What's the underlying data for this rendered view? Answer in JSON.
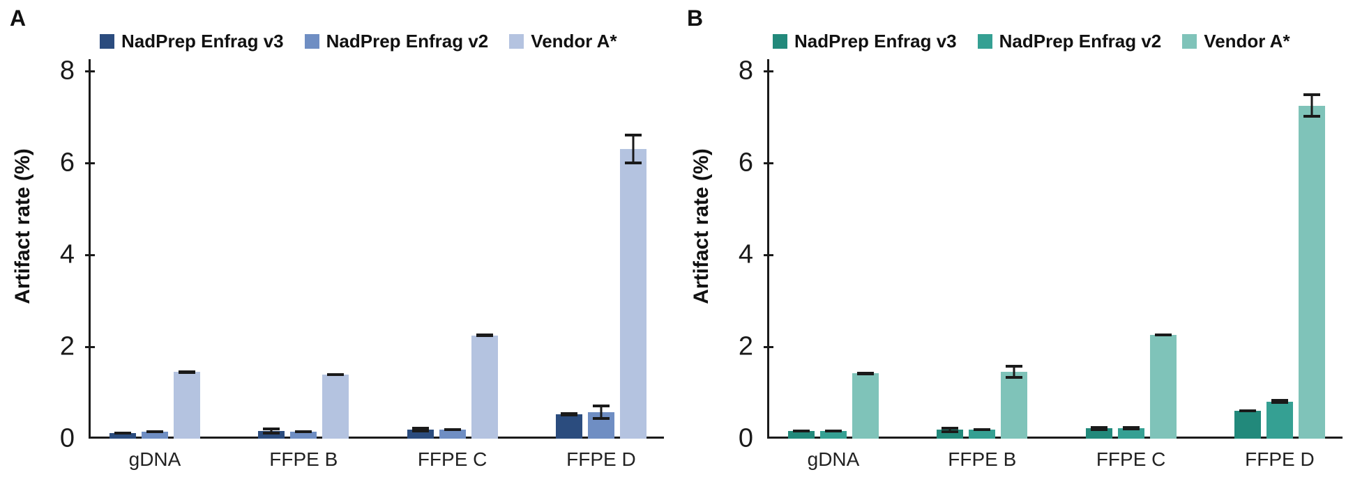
{
  "ui": {
    "background": "#ffffff",
    "axis_color": "#1a1a1a",
    "panel_labels": [
      "A",
      "B"
    ]
  },
  "chart_data": [
    {
      "panel_label": "A",
      "type": "bar",
      "title": "",
      "xlabel": "",
      "ylabel": "Artifact rate (%)",
      "ylim": [
        0,
        8
      ],
      "yticks": [
        0,
        2,
        4,
        6,
        8
      ],
      "grid": false,
      "legend_position": "top",
      "categories": [
        "gDNA",
        "FFPE B",
        "FFPE C",
        "FFPE D"
      ],
      "colors": [
        "#2b4c7e",
        "#6f8ec3",
        "#b4c3e0"
      ],
      "series": [
        {
          "name": "NadPrep Enfrag v3",
          "values": [
            0.12,
            0.17,
            0.2,
            0.53
          ],
          "errors": [
            0.03,
            0.08,
            0.06,
            0.05
          ]
        },
        {
          "name": "NadPrep Enfrag v2",
          "values": [
            0.15,
            0.15,
            0.2,
            0.58
          ],
          "errors": [
            0.03,
            0.03,
            0.03,
            0.17
          ]
        },
        {
          "name": "Vendor A*",
          "values": [
            1.45,
            1.4,
            2.25,
            6.3
          ],
          "errors": [
            0.04,
            0.03,
            0.04,
            0.33
          ]
        }
      ]
    },
    {
      "panel_label": "B",
      "type": "bar",
      "title": "",
      "xlabel": "",
      "ylabel": "Artifact rate (%)",
      "ylim": [
        0,
        8
      ],
      "yticks": [
        0,
        2,
        4,
        6,
        8
      ],
      "grid": false,
      "legend_position": "top",
      "categories": [
        "gDNA",
        "FFPE B",
        "FFPE C",
        "FFPE D"
      ],
      "colors": [
        "#22897b",
        "#35a093",
        "#7fc3b9"
      ],
      "series": [
        {
          "name": "NadPrep Enfrag v3",
          "values": [
            0.16,
            0.19,
            0.22,
            0.61
          ],
          "errors": [
            0.03,
            0.07,
            0.06,
            0.03
          ]
        },
        {
          "name": "NadPrep Enfrag v2",
          "values": [
            0.17,
            0.19,
            0.23,
            0.81
          ],
          "errors": [
            0.03,
            0.03,
            0.02,
            0.05
          ]
        },
        {
          "name": "Vendor A*",
          "values": [
            1.42,
            1.45,
            2.26,
            7.25
          ],
          "errors": [
            0.04,
            0.15,
            0.03,
            0.27
          ]
        }
      ]
    }
  ]
}
